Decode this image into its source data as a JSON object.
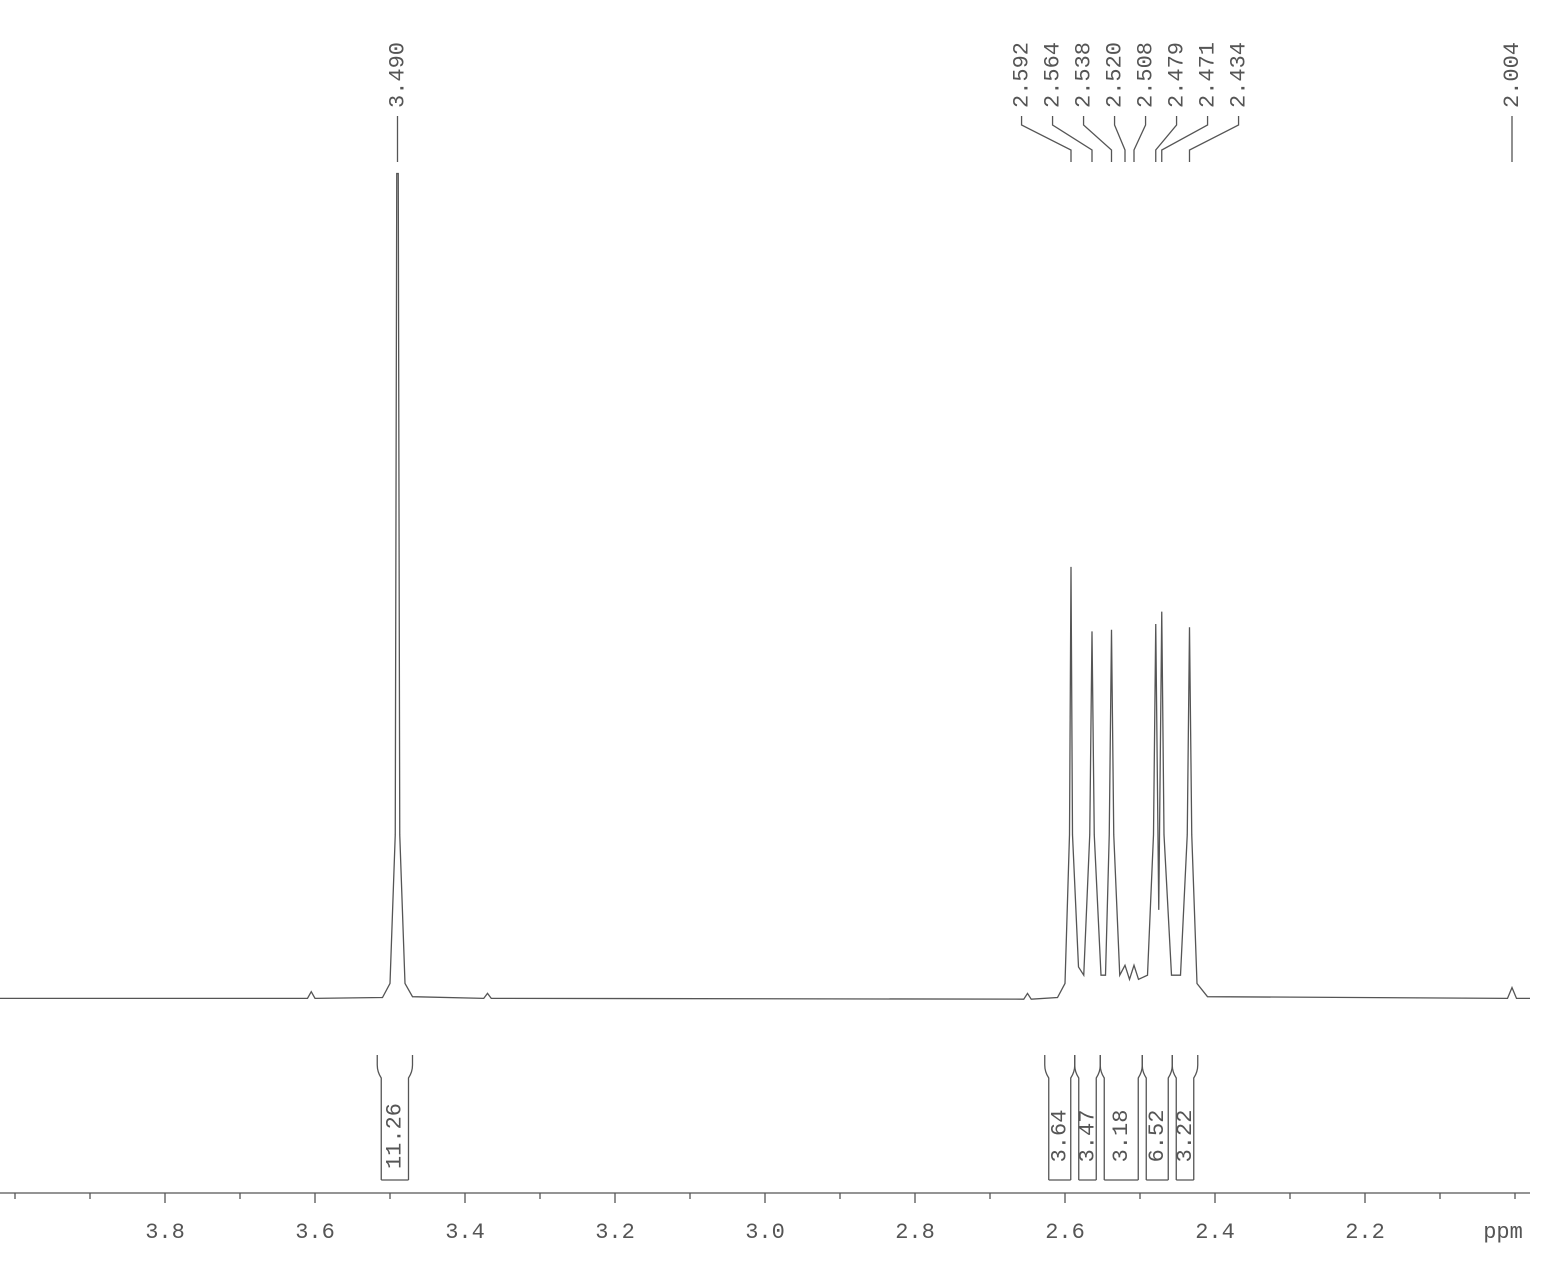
{
  "chart_data": {
    "type": "line",
    "color": "#555555",
    "x": [
      4.02,
      3.61,
      3.605,
      3.6,
      3.51,
      3.5,
      3.493,
      3.491,
      3.489,
      3.487,
      3.48,
      3.47,
      3.375,
      3.37,
      3.365,
      2.655,
      2.65,
      2.645,
      2.61,
      2.6,
      2.594,
      2.592,
      2.59,
      2.582,
      2.575,
      2.567,
      2.564,
      2.561,
      2.552,
      2.546,
      2.541,
      2.538,
      2.535,
      2.527,
      2.52,
      2.514,
      2.508,
      2.502,
      2.49,
      2.482,
      2.479,
      2.475,
      2.471,
      2.468,
      2.458,
      2.446,
      2.437,
      2.434,
      2.431,
      2.424,
      2.41,
      2.01,
      2.004,
      1.998,
      1.98
    ],
    "values": [
      0.2,
      0.2,
      1.0,
      0.2,
      0.3,
      2,
      20,
      100,
      100,
      20,
      2,
      0.4,
      0.2,
      0.8,
      0.2,
      0.1,
      0.8,
      0.1,
      0.3,
      2,
      20,
      52.4,
      20,
      4,
      3,
      20,
      44.6,
      20,
      3,
      3,
      20,
      44.8,
      20,
      3,
      4.2,
      2.5,
      4.2,
      2.5,
      3,
      20,
      45.5,
      10.9,
      47,
      20,
      3,
      3,
      20,
      45.1,
      20,
      2,
      0.4,
      0.2,
      1.5,
      0.2,
      0.2
    ],
    "xlim": [
      4.02,
      1.98
    ],
    "ylim": [
      0,
      121
    ],
    "xticks": [
      3.8,
      3.6,
      3.4,
      3.2,
      {
        "value": 3,
        "label": "3.0"
      },
      2.8,
      2.6,
      2.4,
      2.2
    ],
    "xminorticks": [
      4.0,
      3.9,
      3.7,
      3.5,
      3.3,
      3.1,
      2.9,
      2.7,
      2.5,
      2.3,
      2.1,
      2.0
    ],
    "xlabel": "ppm",
    "peak_labels": [
      {
        "value": 3.49,
        "label": "3.490"
      },
      {
        "value": 2.592,
        "label": "2.592"
      },
      {
        "value": 2.564,
        "label": "2.564"
      },
      {
        "value": 2.538,
        "label": "2.538"
      },
      {
        "value": 2.52,
        "label": "2.520"
      },
      {
        "value": 2.508,
        "label": "2.508"
      },
      {
        "value": 2.479,
        "label": "2.479"
      },
      {
        "value": 2.471,
        "label": "2.471"
      },
      {
        "value": 2.434,
        "label": "2.434"
      },
      {
        "value": 2.004,
        "label": "2.004"
      }
    ],
    "integrals": [
      {
        "from": 3.517,
        "to": 3.47,
        "value": 11.26
      },
      {
        "from": 2.627,
        "to": 2.587,
        "value": 3.64
      },
      {
        "from": 2.587,
        "to": 2.553,
        "value": 3.47
      },
      {
        "from": 2.553,
        "to": 2.497,
        "value": 3.18
      },
      {
        "from": 2.497,
        "to": 2.457,
        "value": 6.52
      },
      {
        "from": 2.457,
        "to": 2.423,
        "value": 3.22
      }
    ]
  }
}
